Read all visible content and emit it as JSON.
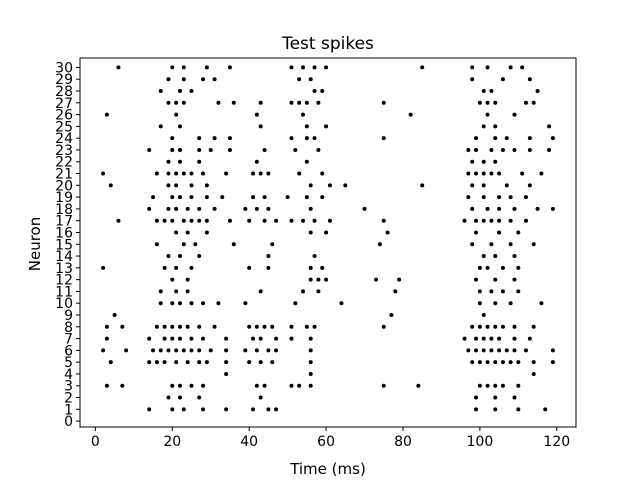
{
  "chart_data": {
    "type": "scatter",
    "title": "Test spikes",
    "xlabel": "Time (ms)",
    "ylabel": "Neuron",
    "xlim": [
      -4,
      125
    ],
    "ylim": [
      -0.5,
      30.8
    ],
    "xticks": [
      0,
      20,
      40,
      60,
      80,
      100,
      120
    ],
    "yticks": [
      0,
      1,
      2,
      3,
      4,
      5,
      6,
      7,
      8,
      9,
      10,
      11,
      12,
      13,
      14,
      15,
      16,
      17,
      18,
      19,
      20,
      21,
      22,
      23,
      24,
      25,
      26,
      27,
      28,
      29,
      30
    ],
    "grid": false,
    "marker_color": "#000000",
    "spikes": [
      {
        "neuron": 30,
        "times": [
          6,
          20,
          23,
          29,
          35,
          51,
          54,
          57,
          60,
          85,
          98,
          102,
          108,
          111
        ]
      },
      {
        "neuron": 29,
        "times": [
          19,
          23,
          28,
          31,
          53,
          56,
          98,
          106,
          113
        ]
      },
      {
        "neuron": 28,
        "times": [
          17,
          22,
          25,
          57,
          59,
          101,
          103,
          115
        ]
      },
      {
        "neuron": 27,
        "times": [
          19,
          21,
          23,
          32,
          36,
          43,
          51,
          53,
          55,
          58,
          75,
          100,
          102,
          104,
          112,
          114
        ]
      },
      {
        "neuron": 26,
        "times": [
          3,
          21,
          42,
          54,
          82,
          102,
          109
        ]
      },
      {
        "neuron": 25,
        "times": [
          17,
          22,
          43,
          55,
          60,
          101,
          104,
          118
        ]
      },
      {
        "neuron": 24,
        "times": [
          20,
          27,
          31,
          35,
          51,
          55,
          57,
          75,
          99,
          104,
          107,
          113,
          119
        ]
      },
      {
        "neuron": 23,
        "times": [
          14,
          20,
          22,
          27,
          30,
          35,
          44,
          52,
          58,
          97,
          99,
          103,
          106,
          109,
          113,
          118
        ]
      },
      {
        "neuron": 22,
        "times": [
          19,
          22,
          27,
          42,
          55,
          98,
          101,
          104
        ]
      },
      {
        "neuron": 21,
        "times": [
          2,
          16,
          19,
          21,
          23,
          25,
          28,
          34,
          41,
          43,
          45,
          53,
          59,
          97,
          99,
          101,
          103,
          105,
          111,
          116
        ]
      },
      {
        "neuron": 20,
        "times": [
          4,
          19,
          21,
          25,
          29,
          56,
          61,
          65,
          85,
          98,
          101,
          107,
          113
        ]
      },
      {
        "neuron": 19,
        "times": [
          15,
          20,
          22,
          25,
          29,
          33,
          41,
          44,
          50,
          55,
          59,
          97,
          101,
          105,
          108,
          112
        ]
      },
      {
        "neuron": 18,
        "times": [
          14,
          19,
          21,
          24,
          27,
          31,
          39,
          42,
          45,
          56,
          70,
          98,
          102,
          105,
          109,
          115,
          119
        ]
      },
      {
        "neuron": 17,
        "times": [
          6,
          16,
          18,
          20,
          23,
          25,
          27,
          29,
          35,
          40,
          44,
          47,
          51,
          54,
          57,
          61,
          75,
          96,
          99,
          101,
          103,
          105,
          108,
          112
        ]
      },
      {
        "neuron": 16,
        "times": [
          21,
          24,
          29,
          56,
          60,
          76,
          99,
          105,
          110
        ]
      },
      {
        "neuron": 15,
        "times": [
          16,
          23,
          26,
          36,
          46,
          74,
          98,
          103,
          108,
          114
        ]
      },
      {
        "neuron": 14,
        "times": [
          19,
          22,
          27,
          45,
          57,
          101,
          104,
          109
        ]
      },
      {
        "neuron": 13,
        "times": [
          2,
          18,
          21,
          25,
          40,
          45,
          56,
          59,
          100,
          102,
          106,
          110
        ]
      },
      {
        "neuron": 12,
        "times": [
          20,
          24,
          56,
          58,
          60,
          73,
          79,
          99,
          104,
          109
        ]
      },
      {
        "neuron": 11,
        "times": [
          17,
          21,
          24,
          43,
          54,
          58,
          78,
          100,
          103,
          106,
          110
        ]
      },
      {
        "neuron": 10,
        "times": [
          17,
          20,
          22,
          25,
          28,
          32,
          39,
          52,
          64,
          100,
          104,
          108,
          116
        ]
      },
      {
        "neuron": 9,
        "times": [
          5,
          77,
          101
        ]
      },
      {
        "neuron": 8,
        "times": [
          3,
          7,
          16,
          18,
          20,
          22,
          24,
          27,
          31,
          40,
          42,
          44,
          46,
          51,
          55,
          57,
          75,
          98,
          100,
          102,
          104,
          106,
          109,
          114
        ]
      },
      {
        "neuron": 7,
        "times": [
          3,
          14,
          18,
          20,
          22,
          25,
          28,
          34,
          41,
          43,
          47,
          51,
          56,
          96,
          99,
          101,
          103,
          105,
          109,
          113
        ]
      },
      {
        "neuron": 6,
        "times": [
          2,
          8,
          15,
          17,
          19,
          21,
          23,
          25,
          27,
          30,
          34,
          39,
          42,
          45,
          47,
          56,
          97,
          99,
          101,
          103,
          105,
          107,
          109,
          112,
          119
        ]
      },
      {
        "neuron": 5,
        "times": [
          4,
          14,
          16,
          18,
          21,
          24,
          27,
          29,
          34,
          40,
          43,
          46,
          56,
          98,
          100,
          102,
          104,
          106,
          108,
          110,
          114,
          119
        ]
      },
      {
        "neuron": 4,
        "times": [
          34,
          56,
          114
        ]
      },
      {
        "neuron": 3,
        "times": [
          3,
          7,
          20,
          22,
          25,
          28,
          42,
          44,
          51,
          53,
          56,
          75,
          84,
          100,
          102,
          104,
          106,
          110
        ]
      },
      {
        "neuron": 2,
        "times": [
          19,
          22,
          27,
          43,
          99,
          104,
          109
        ]
      },
      {
        "neuron": 1,
        "times": [
          14,
          20,
          23,
          28,
          34,
          41,
          45,
          47,
          99,
          104,
          110,
          117
        ]
      }
    ]
  }
}
